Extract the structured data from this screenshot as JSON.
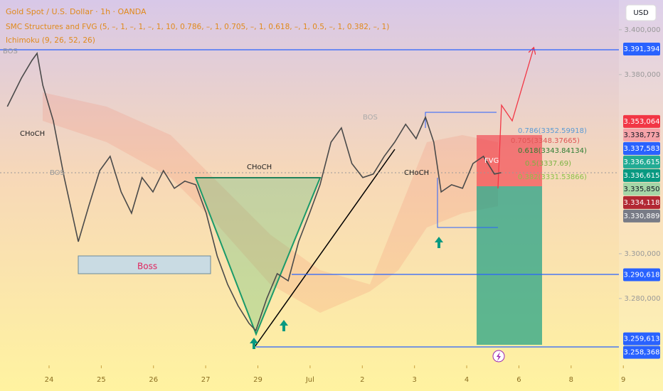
{
  "chart_data": {
    "type": "line",
    "title": "Gold Spot / U.S. Dollar · 1h · OANDA",
    "indicators": [
      "SMC Structures and FVG (5, –, 1, –, 1, –, 1, 10, 0.786, –, 1, 0.705, –, 1, 0.618, –, 1, 0.5, –, 1, 0.382, –, 1)",
      "Ichimoku (9, 26, 52, 26)"
    ],
    "currency": "USD",
    "color": "#4a4a4a",
    "x": [
      23.2,
      23.47,
      23.67,
      23.77,
      23.88,
      24.08,
      24.29,
      24.56,
      24.76,
      24.97,
      25.17,
      25.38,
      25.58,
      25.78,
      25.99,
      26.19,
      26.4,
      26.6,
      26.81,
      27.01,
      27.22,
      27.42,
      27.62,
      27.83,
      27.96,
      28.17,
      28.37,
      28.58,
      28.78,
      28.99,
      29.19,
      29.4,
      29.6,
      29.8,
      30.01,
      30.21,
      30.42,
      30.62,
      30.83,
      31.03,
      31.21,
      31.37,
      31.51,
      31.71,
      31.92,
      32.12,
      32.32,
      32.53,
      32.66
    ],
    "values": [
      3365.7,
      3378.4,
      3386.3,
      3389.5,
      3375.2,
      3359.4,
      3334,
      3305.4,
      3321.3,
      3337.1,
      3343.5,
      3327.6,
      3318.1,
      3334,
      3327.6,
      3337.1,
      3329.2,
      3332.4,
      3330.8,
      3318.1,
      3299,
      3286.3,
      3276.8,
      3268.9,
      3265.7,
      3280,
      3291.1,
      3287.9,
      3305.4,
      3318.1,
      3330.8,
      3349.8,
      3356.2,
      3340.3,
      3334,
      3335.6,
      3343.5,
      3349.8,
      3357.8,
      3351.4,
      3361,
      3349.8,
      3327.6,
      3330.8,
      3329.2,
      3340.3,
      3343.5,
      3335.6,
      3336.2
    ],
    "xlim": [
      23.06,
      35.76
    ],
    "xticks": [
      {
        "value": 24,
        "label": "24"
      },
      {
        "value": 25,
        "label": "25"
      },
      {
        "value": 26,
        "label": "26"
      },
      {
        "value": 27,
        "label": "27"
      },
      {
        "value": 28,
        "label": "29"
      },
      {
        "value": 29,
        "label": "Jul"
      },
      {
        "value": 30,
        "label": "2"
      },
      {
        "value": 31,
        "label": "3"
      },
      {
        "value": 32,
        "label": "4"
      },
      {
        "value": 33,
        "label": "6"
      },
      {
        "value": 34,
        "label": "8"
      },
      {
        "value": 35,
        "label": "9"
      }
    ],
    "ylim": [
      3251.4,
      3413.3
    ],
    "yticks": [
      {
        "value": 3400,
        "label": "3.400,000"
      },
      {
        "value": 3380,
        "label": "3.380,000"
      },
      {
        "value": 3300,
        "label": "3.300,000"
      },
      {
        "value": 3280,
        "label": "3.280,000"
      }
    ],
    "price_labels": [
      {
        "value": 3391.394,
        "label": "3.391,394",
        "color": "#2962ff"
      },
      {
        "value": 3353.064,
        "label": "3.353,064",
        "color": "#f23645"
      },
      {
        "value": 3338.773,
        "label": "3.338,773",
        "color": "#f5a3a8"
      },
      {
        "value": 3337.583,
        "label": "3.337,583",
        "color": "#2962ff"
      },
      {
        "value": 3336.615,
        "label": "3.336,615",
        "color": "#22ab94"
      },
      {
        "value": 3336.615,
        "label": "3.336,615",
        "color": "#089981"
      },
      {
        "value": 3335.85,
        "label": "3.335,850",
        "color": "#a5d6a7"
      },
      {
        "value": 3334.118,
        "label": "3.334,118",
        "color": "#b22833"
      },
      {
        "value": 3330.889,
        "label": "3.330,889",
        "color": "#787b86"
      },
      {
        "value": 3290.618,
        "label": "3.290,618",
        "color": "#2962ff"
      },
      {
        "value": 3259.613,
        "label": "3.259,613",
        "color": "#2962ff"
      },
      {
        "value": 3258.368,
        "label": "3.258,368",
        "color": "#2962ff"
      }
    ],
    "annotations": [
      "BOS",
      "CHoCH",
      "BOS",
      "CHoCH",
      "CHoCH",
      "Boss",
      "FVG",
      "BOS",
      "0.786(3352.59918)",
      "0.705(3348.37665)",
      "0.618(3343.84134)",
      "0.5(3337.69)",
      "0.382(3331.53866)"
    ]
  }
}
